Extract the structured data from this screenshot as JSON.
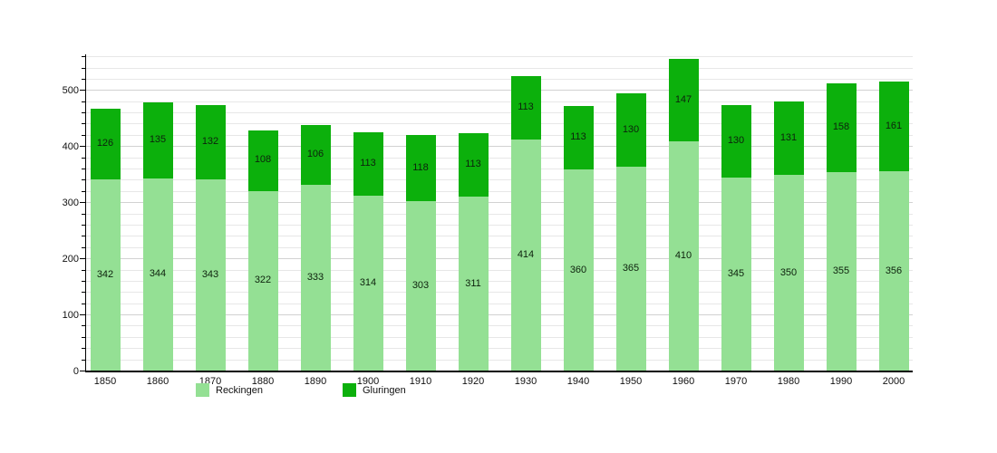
{
  "chart_data": {
    "type": "bar",
    "stacked": true,
    "title": "",
    "xlabel": "",
    "ylabel": "",
    "categories": [
      "1850",
      "1860",
      "1870",
      "1880",
      "1890",
      "1900",
      "1910",
      "1920",
      "1930",
      "1940",
      "1950",
      "1960",
      "1970",
      "1980",
      "1990",
      "2000"
    ],
    "series": [
      {
        "name": "Reckingen",
        "color": "#94E094",
        "values": [
          342,
          344,
          343,
          322,
          333,
          314,
          303,
          311,
          414,
          360,
          365,
          410,
          345,
          350,
          355,
          356
        ]
      },
      {
        "name": "Gluringen",
        "color": "#0CB00C",
        "values": [
          126,
          135,
          132,
          108,
          106,
          113,
          118,
          113,
          113,
          113,
          130,
          147,
          130,
          131,
          158,
          161
        ]
      }
    ],
    "totals": [
      468,
      479,
      475,
      430,
      439,
      427,
      421,
      424,
      527,
      473,
      495,
      557,
      475,
      481,
      513,
      517
    ],
    "ylim": [
      0,
      565
    ],
    "yticks": [
      0,
      100,
      200,
      300,
      400,
      500
    ],
    "minor_tick_step": 20,
    "grid": true,
    "grid_max": 560,
    "show_value_labels": true,
    "legend_position": "bottom"
  },
  "legend": {
    "items": [
      {
        "label": "Reckingen",
        "color": "#94E094"
      },
      {
        "label": "Gluringen",
        "color": "#0CB00C"
      }
    ]
  },
  "colors": {
    "background": "#FFFFFF",
    "axis": "#000000",
    "grid_minor": "#E7E7E7",
    "grid_major": "#D2D2D2",
    "value_label": "#0D220D"
  }
}
